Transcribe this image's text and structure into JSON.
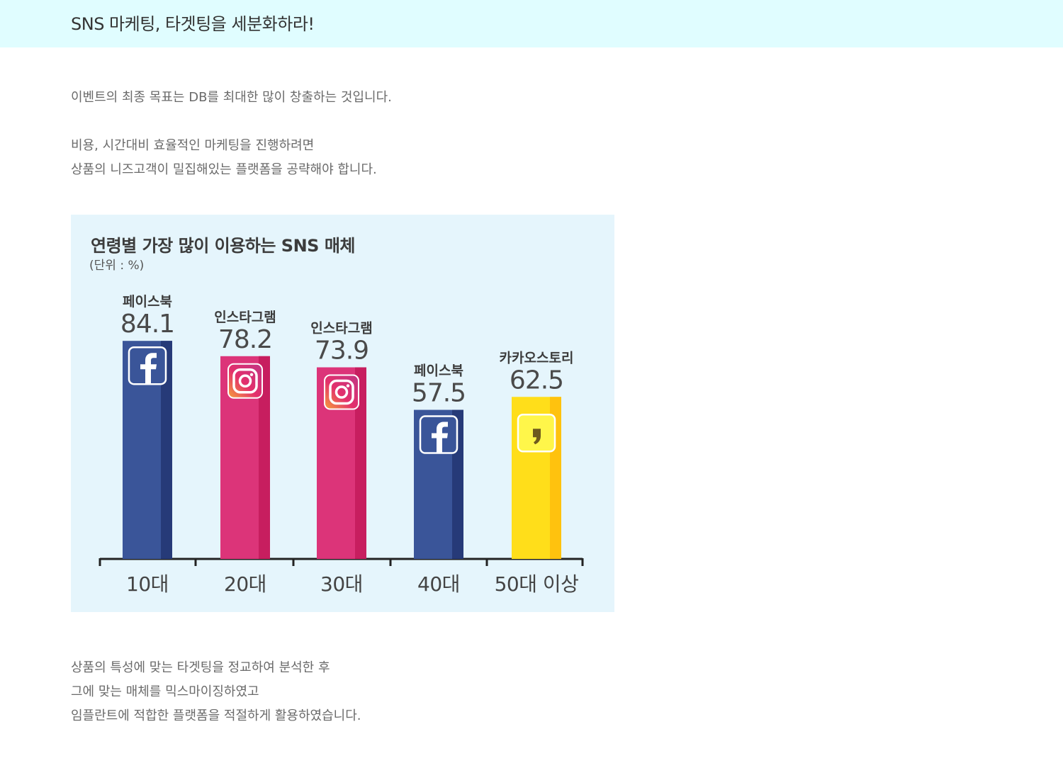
{
  "header": {
    "title": "SNS 마케팅, 타겟팅을 세분화하라!"
  },
  "intro": {
    "line1": "이벤트의 최종 목표는 DB를 최대한 많이 창출하는 것입니다.",
    "line2": "비용, 시간대비 효율적인 마케팅을 진행하려면",
    "line3": "상품의 니즈고객이 밀집해있는 플랫폼을 공략해야 합니다."
  },
  "outro": {
    "line1": "상품의 특성에 맞는 타겟팅을 정교하여 분석한 후",
    "line2": "그에 맞는 매체를 믹스마이징하였고",
    "line3": "임플란트에 적합한 플랫폼을 적절하게 활용하였습니다."
  },
  "colors": {
    "facebook": "#3a5599",
    "facebook_side": "#263a78",
    "instagram": "#dc3479",
    "instagram_side": "#c71e5f",
    "kakao": "#ffde1a",
    "kakao_side": "#ffc20e"
  },
  "chart_data": {
    "type": "bar",
    "title": "연령별 가장 많이 이용하는 SNS 매체",
    "unit": "(단위 : %)",
    "ylim": [
      0,
      100
    ],
    "grid": false,
    "legend": "none",
    "categories": [
      "10대",
      "20대",
      "30대",
      "40대",
      "50대 이상"
    ],
    "values": [
      84.1,
      78.2,
      73.9,
      57.5,
      62.5
    ],
    "value_labels": [
      "84.1",
      "78.2",
      "73.9",
      "57.5",
      "62.5"
    ],
    "platforms": [
      "페이스북",
      "인스타그램",
      "인스타그램",
      "페이스북",
      "카카오스토리"
    ],
    "icons": [
      "facebook-icon",
      "instagram-icon",
      "instagram-icon",
      "facebook-icon",
      "kakaostory-icon"
    ],
    "platform_keys": [
      "facebook",
      "instagram",
      "instagram",
      "facebook",
      "kakao"
    ]
  }
}
